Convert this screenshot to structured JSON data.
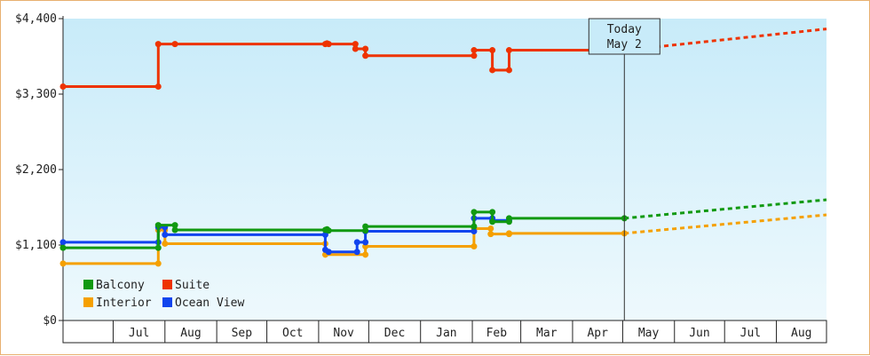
{
  "chart_data": {
    "type": "line",
    "title": "",
    "xlabel": "",
    "ylabel": "",
    "ylim": [
      0,
      4400
    ],
    "yticks": [
      {
        "value": 0,
        "label": "$0"
      },
      {
        "value": 1100,
        "label": "$1,100"
      },
      {
        "value": 2200,
        "label": "$2,200"
      },
      {
        "value": 3300,
        "label": "$3,300"
      },
      {
        "value": 4400,
        "label": "$4,400"
      }
    ],
    "xlim": [
      "2023-06-01",
      "2024-08-31"
    ],
    "month_labels": [
      {
        "label": "Jul",
        "date": "2023-07-01"
      },
      {
        "label": "Aug",
        "date": "2023-08-01"
      },
      {
        "label": "Sep",
        "date": "2023-09-01"
      },
      {
        "label": "Oct",
        "date": "2023-10-01"
      },
      {
        "label": "Nov",
        "date": "2023-11-01"
      },
      {
        "label": "Dec",
        "date": "2023-12-01"
      },
      {
        "label": "Jan",
        "date": "2024-01-01"
      },
      {
        "label": "Feb",
        "date": "2024-02-01"
      },
      {
        "label": "Mar",
        "date": "2024-03-01"
      },
      {
        "label": "Apr",
        "date": "2024-04-01"
      },
      {
        "label": "May",
        "date": "2024-05-01"
      },
      {
        "label": "Jun",
        "date": "2024-06-01"
      },
      {
        "label": "Jul",
        "date": "2024-07-01"
      },
      {
        "label": "Aug",
        "date": "2024-08-01"
      }
    ],
    "today": {
      "date": "2024-05-02",
      "line1": "Today",
      "line2": "May 2"
    },
    "grid": false,
    "legend_position": "bottom-left",
    "series": [
      {
        "name": "Suite",
        "color": "#ee3300",
        "points": [
          [
            "2023-06-01",
            3410
          ],
          [
            "2023-07-28",
            3410
          ],
          [
            "2023-07-28",
            4030
          ],
          [
            "2023-08-07",
            4030
          ],
          [
            "2023-11-05",
            4030
          ],
          [
            "2023-11-06",
            4040
          ],
          [
            "2023-11-07",
            4030
          ],
          [
            "2023-11-23",
            4030
          ],
          [
            "2023-11-23",
            3960
          ],
          [
            "2023-11-29",
            3960
          ],
          [
            "2023-11-29",
            3860
          ],
          [
            "2024-02-02",
            3860
          ],
          [
            "2024-02-02",
            3940
          ],
          [
            "2024-02-13",
            3940
          ],
          [
            "2024-02-13",
            3650
          ],
          [
            "2024-02-23",
            3650
          ],
          [
            "2024-02-23",
            3940
          ],
          [
            "2024-05-02",
            3940
          ]
        ],
        "forecast": [
          [
            "2024-05-02",
            3940
          ],
          [
            "2024-08-31",
            4250
          ]
        ]
      },
      {
        "name": "Balcony",
        "color": "#119911",
        "points": [
          [
            "2023-06-01",
            1060
          ],
          [
            "2023-07-28",
            1060
          ],
          [
            "2023-07-28",
            1390
          ],
          [
            "2023-08-07",
            1390
          ],
          [
            "2023-08-07",
            1320
          ],
          [
            "2023-11-05",
            1320
          ],
          [
            "2023-11-06",
            1330
          ],
          [
            "2023-11-07",
            1310
          ],
          [
            "2023-11-29",
            1310
          ],
          [
            "2023-11-29",
            1370
          ],
          [
            "2024-02-02",
            1370
          ],
          [
            "2024-02-02",
            1580
          ],
          [
            "2024-02-13",
            1580
          ],
          [
            "2024-02-13",
            1440
          ],
          [
            "2024-02-23",
            1440
          ],
          [
            "2024-02-23",
            1490
          ],
          [
            "2024-05-02",
            1490
          ]
        ],
        "forecast": [
          [
            "2024-05-02",
            1490
          ],
          [
            "2024-08-31",
            1760
          ]
        ]
      },
      {
        "name": "Ocean View",
        "color": "#1144ee",
        "points": [
          [
            "2023-06-01",
            1140
          ],
          [
            "2023-07-28",
            1140
          ],
          [
            "2023-07-28",
            1360
          ],
          [
            "2023-08-01",
            1360
          ],
          [
            "2023-08-01",
            1250
          ],
          [
            "2023-11-05",
            1250
          ],
          [
            "2023-11-05",
            1030
          ],
          [
            "2023-11-07",
            1000
          ],
          [
            "2023-11-24",
            1000
          ],
          [
            "2023-11-24",
            1140
          ],
          [
            "2023-11-29",
            1140
          ],
          [
            "2023-11-29",
            1300
          ],
          [
            "2024-02-02",
            1300
          ],
          [
            "2024-02-02",
            1490
          ],
          [
            "2024-02-13",
            1490
          ],
          [
            "2024-02-13",
            1460
          ],
          [
            "2024-02-23",
            1460
          ]
        ],
        "forecast": []
      },
      {
        "name": "Interior",
        "color": "#f5a000",
        "points": [
          [
            "2023-06-01",
            830
          ],
          [
            "2023-07-28",
            830
          ],
          [
            "2023-07-28",
            1320
          ],
          [
            "2023-08-01",
            1320
          ],
          [
            "2023-08-01",
            1120
          ],
          [
            "2023-11-05",
            1120
          ],
          [
            "2023-11-05",
            960
          ],
          [
            "2023-11-29",
            960
          ],
          [
            "2023-11-29",
            1080
          ],
          [
            "2024-02-02",
            1080
          ],
          [
            "2024-02-02",
            1340
          ],
          [
            "2024-02-12",
            1340
          ],
          [
            "2024-02-12",
            1260
          ],
          [
            "2024-02-23",
            1260
          ],
          [
            "2024-02-23",
            1270
          ],
          [
            "2024-05-02",
            1270
          ]
        ],
        "forecast": [
          [
            "2024-05-02",
            1270
          ],
          [
            "2024-08-31",
            1540
          ]
        ]
      }
    ],
    "legend": [
      {
        "name": "Balcony",
        "color": "#119911"
      },
      {
        "name": "Suite",
        "color": "#ee3300"
      },
      {
        "name": "Interior",
        "color": "#f5a000"
      },
      {
        "name": "Ocean View",
        "color": "#1144ee"
      }
    ]
  }
}
